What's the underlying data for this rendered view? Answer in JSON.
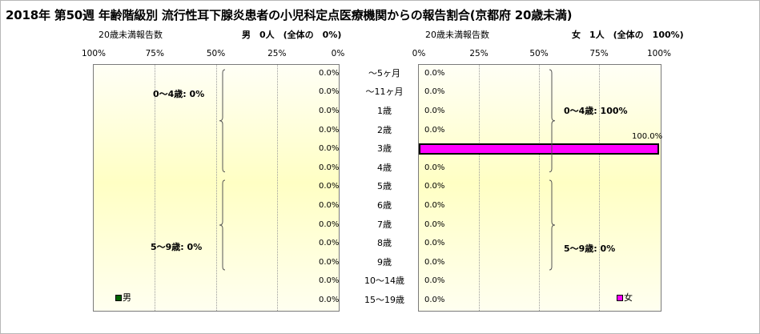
{
  "chart_data": {
    "type": "bar",
    "title": "2018年 第50週 年齢階級別 流行性耳下腺炎患者の小児科定点医療機関からの報告割合(京都府 20歳未満)",
    "categories": [
      "～5ヶ月",
      "～11ヶ月",
      "1歳",
      "2歳",
      "3歳",
      "4歳",
      "5歳",
      "6歳",
      "7歳",
      "8歳",
      "9歳",
      "10～14歳",
      "15～19歳"
    ],
    "series": [
      {
        "name": "男",
        "color": "#006400",
        "axis_label": "20歳未満報告数",
        "summary": "男　0人　(全体の　0%)",
        "values": [
          0,
          0,
          0,
          0,
          0,
          0,
          0,
          0,
          0,
          0,
          0,
          0,
          0
        ],
        "labels": [
          "0.0%",
          "0.0%",
          "0.0%",
          "0.0%",
          "0.0%",
          "0.0%",
          "0.0%",
          "0.0%",
          "0.0%",
          "0.0%",
          "0.0%",
          "0.0%",
          "0.0%"
        ],
        "groups": [
          "0～4歳: 0%",
          "5～9歳: 0%"
        ]
      },
      {
        "name": "女",
        "color": "#ff00ff",
        "axis_label": "20歳未満報告数",
        "summary": "女　1人　(全体の　100%)",
        "values": [
          0,
          0,
          0,
          0,
          100,
          0,
          0,
          0,
          0,
          0,
          0,
          0,
          0
        ],
        "labels": [
          "0.0%",
          "0.0%",
          "0.0%",
          "0.0%",
          "100.0%",
          "0.0%",
          "0.0%",
          "0.0%",
          "0.0%",
          "0.0%",
          "0.0%",
          "0.0%",
          "0.0%"
        ],
        "groups": [
          "0～4歳: 100%",
          "5～9歳: 0%"
        ]
      }
    ],
    "left_ticks": [
      "100%",
      "75%",
      "50%",
      "25%",
      "0%"
    ],
    "right_ticks": [
      "0%",
      "25%",
      "50%",
      "75%",
      "100%"
    ],
    "xlim": [
      0,
      100
    ],
    "grid": true,
    "legend": "bottom"
  }
}
